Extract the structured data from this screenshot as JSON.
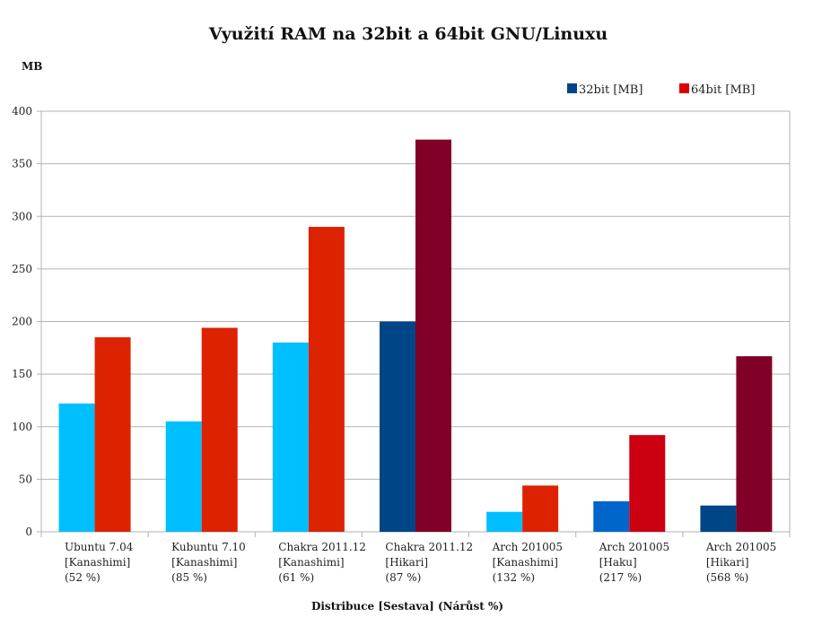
{
  "chart_data": {
    "type": "bar",
    "title": "Využití RAM na 32bit a 64bit GNU/Linuxu",
    "ylabel": "MB",
    "xlabel": "Distribuce [Sestava] (Nárůst %)",
    "ylim": [
      0,
      400
    ],
    "yticks": [
      0,
      50,
      100,
      150,
      200,
      250,
      300,
      350,
      400
    ],
    "grid": true,
    "legend_position": "top-right",
    "categories": [
      [
        "Ubuntu 7.04",
        "[Kanashimi]",
        "(52 %)"
      ],
      [
        "Kubuntu 7.10",
        "[Kanashimi]",
        "(85 %)"
      ],
      [
        "Chakra 2011.12",
        "[Kanashimi]",
        "(61 %)"
      ],
      [
        "Chakra 2011.12",
        "[Hikari]",
        "(87 %)"
      ],
      [
        "Arch 201005",
        "[Kanashimi]",
        "(132 %)"
      ],
      [
        "Arch 201005",
        "[Haku]",
        "(217 %)"
      ],
      [
        "Arch 201005",
        "[Hikari]",
        "(568 %)"
      ]
    ],
    "series": [
      {
        "name": "32bit [MB]",
        "legend_color": "#004586",
        "values": [
          122,
          105,
          180,
          200,
          19,
          29,
          25
        ],
        "colors": [
          "#00bfff",
          "#00bfff",
          "#00bfff",
          "#004586",
          "#00bfff",
          "#0066cc",
          "#004586"
        ]
      },
      {
        "name": "64bit [MB]",
        "legend_color": "#dd0000",
        "values": [
          185,
          194,
          290,
          373,
          44,
          92,
          167
        ],
        "colors": [
          "#dd2200",
          "#dd2200",
          "#dd2200",
          "#800027",
          "#dd2200",
          "#cc0011",
          "#800027"
        ]
      }
    ]
  }
}
